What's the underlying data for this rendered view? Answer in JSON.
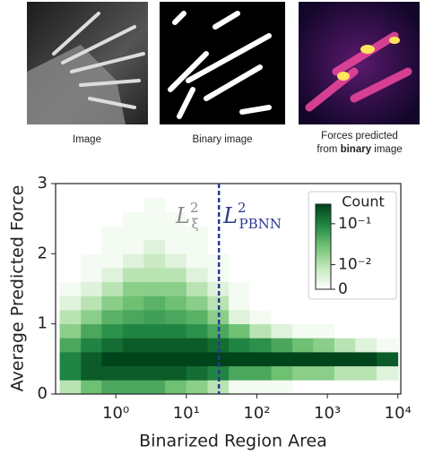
{
  "panels": {
    "captions": [
      "Image",
      "Binary image"
    ],
    "forces_caption": [
      "Forces predicted",
      "from ",
      "binary",
      " image"
    ]
  },
  "chart_data": {
    "type": "hist2d",
    "xlabel": "Binarized Region Area",
    "ylabel": "Average Predicted Force",
    "xscale": "log",
    "xlim": [
      0.14,
      11000
    ],
    "ylim": [
      0,
      3
    ],
    "xticks": [
      {
        "value": 1,
        "label": "10⁰"
      },
      {
        "value": 10,
        "label": "10¹"
      },
      {
        "value": 100,
        "label": "10²"
      },
      {
        "value": 1000,
        "label": "10³"
      },
      {
        "value": 10000,
        "label": "10⁴"
      }
    ],
    "yticks": [
      0,
      1,
      2,
      3
    ],
    "xbins": [
      0.16,
      0.32,
      0.63,
      1.26,
      2.5,
      5,
      10,
      20,
      40,
      79,
      160,
      320,
      630,
      1260,
      2500,
      5000,
      10000
    ],
    "ybins": [
      0,
      0.2,
      0.4,
      0.6,
      0.8,
      1.0,
      1.2,
      1.4,
      1.6,
      1.8,
      2.0,
      2.2,
      2.4,
      2.6,
      2.8,
      3.0
    ],
    "counts": [
      [
        0.01,
        0.03,
        0.05,
        0.05,
        0.05,
        0.03,
        0.02,
        0.01,
        0.003,
        0.002,
        0.001,
        0,
        0,
        0,
        0,
        0
      ],
      [
        0.1,
        0.2,
        0.2,
        0.2,
        0.2,
        0.2,
        0.15,
        0.1,
        0.05,
        0.05,
        0.03,
        0.02,
        0.02,
        0.01,
        0.01,
        0.005
      ],
      [
        0.1,
        0.2,
        0.3,
        0.3,
        0.3,
        0.3,
        0.3,
        0.3,
        0.3,
        0.3,
        0.3,
        0.3,
        0.3,
        0.3,
        0.3,
        0.2
      ],
      [
        0.05,
        0.1,
        0.15,
        0.2,
        0.2,
        0.2,
        0.2,
        0.15,
        0.1,
        0.08,
        0.05,
        0.03,
        0.02,
        0.01,
        0.005,
        0.003
      ],
      [
        0.02,
        0.05,
        0.08,
        0.1,
        0.1,
        0.1,
        0.08,
        0.05,
        0.03,
        0.01,
        0.005,
        0.002,
        0.001,
        0,
        0,
        0
      ],
      [
        0.01,
        0.02,
        0.04,
        0.05,
        0.06,
        0.05,
        0.04,
        0.02,
        0.005,
        0.002,
        0,
        0,
        0,
        0,
        0,
        0
      ],
      [
        0.005,
        0.01,
        0.02,
        0.03,
        0.04,
        0.03,
        0.02,
        0.01,
        0.002,
        0,
        0,
        0,
        0,
        0,
        0,
        0
      ],
      [
        0.002,
        0.005,
        0.01,
        0.02,
        0.02,
        0.02,
        0.01,
        0.005,
        0.001,
        0,
        0,
        0,
        0,
        0,
        0,
        0
      ],
      [
        0,
        0.003,
        0.005,
        0.01,
        0.01,
        0.01,
        0.005,
        0.002,
        0,
        0,
        0,
        0,
        0,
        0,
        0,
        0
      ],
      [
        0,
        0.001,
        0.003,
        0.005,
        0.008,
        0.005,
        0.003,
        0.001,
        0,
        0,
        0,
        0,
        0,
        0,
        0,
        0
      ],
      [
        0,
        0,
        0.002,
        0.003,
        0.005,
        0.003,
        0.002,
        0,
        0,
        0,
        0,
        0,
        0,
        0,
        0,
        0
      ],
      [
        0,
        0,
        0.001,
        0.002,
        0.003,
        0.002,
        0.001,
        0,
        0,
        0,
        0,
        0,
        0,
        0,
        0,
        0
      ],
      [
        0,
        0,
        0,
        0.001,
        0.002,
        0.001,
        0,
        0,
        0,
        0,
        0,
        0,
        0,
        0,
        0,
        0
      ],
      [
        0,
        0,
        0,
        0,
        0.001,
        0,
        0,
        0,
        0,
        0,
        0,
        0,
        0,
        0,
        0,
        0
      ],
      [
        0,
        0,
        0,
        0,
        0,
        0,
        0,
        0,
        0,
        0,
        0,
        0,
        0,
        0,
        0,
        0
      ]
    ],
    "colormap": [
      "#ffffff",
      "#c7e9c0",
      "#74c476",
      "#238b45",
      "#00441b"
    ],
    "colorbar": {
      "title": "Count",
      "clim": [
        0,
        0.3
      ],
      "ticks": [
        {
          "value": 0.1,
          "label": "10⁻¹"
        },
        {
          "value": 0.01,
          "label": "10⁻²"
        },
        0
      ]
    },
    "vline": {
      "x": 29,
      "color": "#2b3990"
    },
    "annotations": [
      {
        "base": "L",
        "sup": "2",
        "sub": "ξ",
        "color": "#8a8a8a"
      },
      {
        "base": "L",
        "sup": "2",
        "sub": "PBNN",
        "color": "#2b3990"
      }
    ]
  }
}
